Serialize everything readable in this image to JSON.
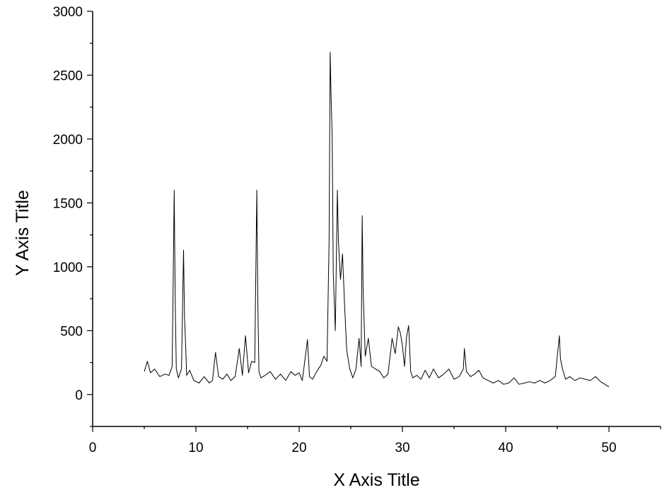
{
  "chart_data": {
    "type": "line",
    "title": "",
    "xlabel": "X Axis Title",
    "ylabel": "Y Axis Title",
    "xlim": [
      0,
      55
    ],
    "ylim": [
      -250,
      3000
    ],
    "x_ticks": [
      0,
      10,
      20,
      30,
      40,
      50
    ],
    "x_tick_labels": [
      "0",
      "10",
      "20",
      "30",
      "40",
      "50"
    ],
    "y_ticks": [
      0,
      500,
      1000,
      1500,
      2000,
      2500,
      3000
    ],
    "y_tick_labels": [
      "0",
      "500",
      "1000",
      "1500",
      "2000",
      "2500",
      "3000"
    ],
    "grid": false,
    "legend": "none",
    "series": [
      {
        "color": "#000000",
        "x": [
          5.0,
          5.3,
          5.6,
          6.0,
          6.5,
          7.0,
          7.4,
          7.7,
          7.8,
          7.9,
          8.0,
          8.1,
          8.3,
          8.6,
          8.8,
          8.9,
          9.0,
          9.1,
          9.4,
          9.8,
          10.3,
          10.8,
          11.3,
          11.6,
          11.9,
          12.2,
          12.6,
          13.0,
          13.4,
          13.8,
          14.2,
          14.5,
          14.8,
          15.1,
          15.4,
          15.7,
          15.9,
          16.0,
          16.1,
          16.3,
          16.7,
          17.2,
          17.7,
          18.2,
          18.7,
          19.2,
          19.6,
          20.0,
          20.3,
          20.6,
          20.8,
          21.0,
          21.3,
          21.7,
          22.1,
          22.4,
          22.7,
          22.9,
          23.0,
          23.1,
          23.2,
          23.3,
          23.5,
          23.7,
          23.8,
          24.0,
          24.2,
          24.4,
          24.6,
          24.9,
          25.2,
          25.5,
          25.8,
          26.0,
          26.1,
          26.2,
          26.4,
          26.7,
          27.0,
          27.4,
          27.8,
          28.2,
          28.6,
          29.0,
          29.3,
          29.6,
          29.8,
          30.0,
          30.2,
          30.4,
          30.6,
          30.8,
          31.0,
          31.4,
          31.8,
          32.2,
          32.6,
          33.0,
          33.5,
          34.0,
          34.5,
          35.0,
          35.5,
          35.9,
          36.0,
          36.2,
          36.6,
          37.0,
          37.4,
          37.8,
          38.3,
          38.8,
          39.3,
          39.8,
          40.3,
          40.8,
          41.3,
          41.8,
          42.3,
          42.8,
          43.3,
          43.8,
          44.3,
          44.8,
          45.0,
          45.2,
          45.3,
          45.5,
          45.8,
          46.2,
          46.7,
          47.2,
          47.7,
          48.2,
          48.7,
          49.2,
          49.6,
          50.0
        ],
        "values": [
          180,
          260,
          170,
          200,
          140,
          160,
          150,
          220,
          900,
          1600,
          700,
          200,
          130,
          200,
          1130,
          600,
          400,
          150,
          190,
          110,
          90,
          140,
          90,
          110,
          330,
          140,
          120,
          160,
          110,
          140,
          360,
          150,
          460,
          170,
          260,
          250,
          1600,
          700,
          180,
          130,
          150,
          180,
          120,
          160,
          110,
          180,
          150,
          170,
          110,
          300,
          430,
          140,
          120,
          180,
          230,
          300,
          260,
          1200,
          2680,
          2300,
          2000,
          950,
          500,
          1600,
          1200,
          900,
          1100,
          700,
          350,
          200,
          130,
          200,
          440,
          220,
          1400,
          800,
          300,
          440,
          220,
          200,
          180,
          130,
          160,
          440,
          320,
          530,
          480,
          380,
          220,
          450,
          540,
          180,
          130,
          150,
          120,
          190,
          130,
          200,
          130,
          160,
          200,
          120,
          140,
          200,
          360,
          180,
          140,
          160,
          190,
          130,
          110,
          90,
          110,
          80,
          90,
          130,
          80,
          90,
          100,
          90,
          110,
          90,
          110,
          140,
          300,
          460,
          280,
          200,
          120,
          140,
          110,
          130,
          120,
          110,
          140,
          100,
          80,
          60
        ]
      }
    ]
  }
}
